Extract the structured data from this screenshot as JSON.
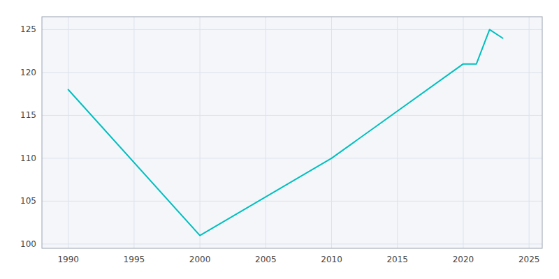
{
  "chart_data": {
    "type": "line",
    "x": [
      1990,
      2000,
      2010,
      2020,
      2021,
      2022,
      2023
    ],
    "values": [
      118,
      101,
      110,
      121,
      121,
      125,
      124
    ],
    "color": "#00BFBF",
    "xlim": [
      1988,
      2026
    ],
    "ylim": [
      99.5,
      126.5
    ],
    "xticks": [
      1990,
      1995,
      2000,
      2005,
      2010,
      2015,
      2020,
      2025
    ],
    "yticks": [
      100,
      105,
      110,
      115,
      120,
      125
    ],
    "grid": true
  }
}
